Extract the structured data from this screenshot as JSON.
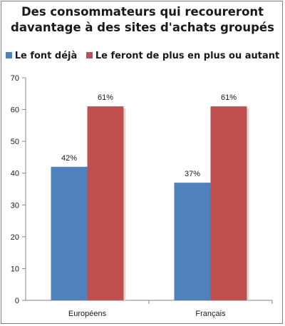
{
  "chart_data": {
    "type": "bar",
    "title_lines": [
      "Des consommateurs qui recoureront",
      "davantage à des sites d'achats groupés"
    ],
    "categories": [
      "Européens",
      "Français"
    ],
    "series": [
      {
        "name": "Le font déjà",
        "values": [
          42,
          37
        ],
        "labels": [
          "42%",
          "37%"
        ],
        "color": "#4f81bd"
      },
      {
        "name": "Le feront de plus en plus ou autant",
        "values": [
          61,
          61
        ],
        "labels": [
          "61%",
          "61%"
        ],
        "color": "#c0504d"
      }
    ],
    "ylim": [
      0,
      70
    ],
    "yticks": [
      0,
      10,
      20,
      30,
      40,
      50,
      60,
      70
    ],
    "grid": false,
    "legend_position": "top"
  }
}
